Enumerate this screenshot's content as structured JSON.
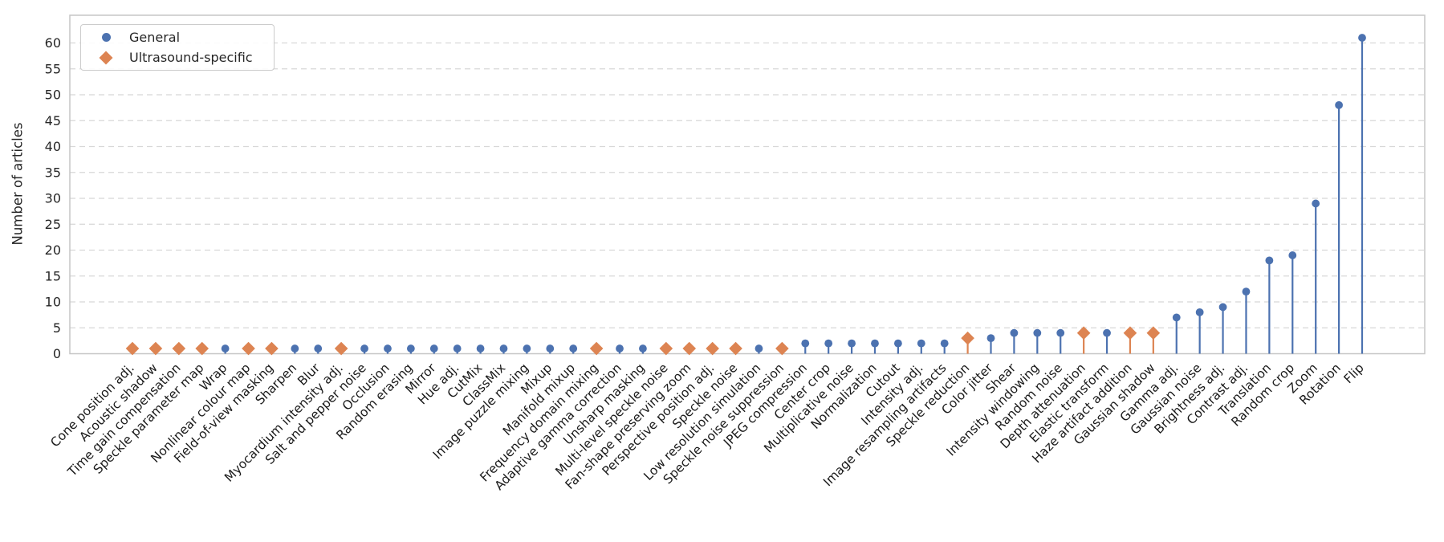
{
  "figure": {
    "ylabel": "Number of articles",
    "legend": {
      "items": [
        {
          "label": "General",
          "marker": "circle-icon",
          "color": "#4C72B0"
        },
        {
          "label": "Ultrasound-specific",
          "marker": "diamond-icon",
          "color": "#DD8452"
        }
      ]
    }
  },
  "chart_data": {
    "type": "stem",
    "title": "",
    "xlabel": "",
    "ylabel": "Number of articles",
    "ylim": [
      0,
      65.5
    ],
    "yticks": [
      0,
      5,
      10,
      15,
      20,
      25,
      30,
      35,
      40,
      45,
      50,
      55,
      60
    ],
    "grid": "horizontal-dashed",
    "legend_position": "upper left",
    "group_colors": {
      "General": "#4C72B0",
      "Ultrasound-specific": "#DD8452"
    },
    "group_markers": {
      "General": "circle",
      "Ultrasound-specific": "diamond"
    },
    "categories": [
      "Cone position adj.",
      "Acoustic shadow",
      "Time gain compensation",
      "Speckle parameter map",
      "Wrap",
      "Nonlinear colour map",
      "Field-of-view masking",
      "Sharpen",
      "Blur",
      "Myocardium intensity adj.",
      "Salt and pepper noise",
      "Occlusion",
      "Random erasing",
      "Mirror",
      "Hue adj.",
      "CutMix",
      "ClassMix",
      "Image puzzle mixing",
      "Mixup",
      "Manifold mixup",
      "Frequency domain mixing",
      "Adaptive gamma correction",
      "Unsharp masking",
      "Multi-level speckle noise",
      "Fan-shape preserving zoom",
      "Perspective position adj.",
      "Speckle noise",
      "Low resolution simulation",
      "Speckle noise suppression",
      "JPEG compression",
      "Center crop",
      "Multiplicative noise",
      "Normalization",
      "Cutout",
      "Intensity adj.",
      "Image resampling artifacts",
      "Speckle reduction",
      "Color jitter",
      "Shear",
      "Intensity windowing",
      "Random noise",
      "Depth attenuation",
      "Elastic transform",
      "Haze artifact addition",
      "Gaussian shadow",
      "Gamma adj.",
      "Gaussian noise",
      "Brightness adj.",
      "Contrast adj.",
      "Translation",
      "Random crop",
      "Zoom",
      "Rotation",
      "Flip"
    ],
    "values": [
      1,
      1,
      1,
      1,
      1,
      1,
      1,
      1,
      1,
      1,
      1,
      1,
      1,
      1,
      1,
      1,
      1,
      1,
      1,
      1,
      1,
      1,
      1,
      1,
      1,
      1,
      1,
      1,
      1,
      2,
      2,
      2,
      2,
      2,
      2,
      2,
      3,
      3,
      4,
      4,
      4,
      4,
      4,
      4,
      4,
      7,
      8,
      9,
      12,
      18,
      19,
      29,
      48,
      61
    ],
    "groups": [
      "Ultrasound-specific",
      "Ultrasound-specific",
      "Ultrasound-specific",
      "Ultrasound-specific",
      "General",
      "Ultrasound-specific",
      "Ultrasound-specific",
      "General",
      "General",
      "Ultrasound-specific",
      "General",
      "General",
      "General",
      "General",
      "General",
      "General",
      "General",
      "General",
      "General",
      "General",
      "Ultrasound-specific",
      "General",
      "General",
      "Ultrasound-specific",
      "Ultrasound-specific",
      "Ultrasound-specific",
      "Ultrasound-specific",
      "General",
      "Ultrasound-specific",
      "General",
      "General",
      "General",
      "General",
      "General",
      "General",
      "General",
      "Ultrasound-specific",
      "General",
      "General",
      "General",
      "General",
      "Ultrasound-specific",
      "General",
      "Ultrasound-specific",
      "Ultrasound-specific",
      "General",
      "General",
      "General",
      "General",
      "General",
      "General",
      "General",
      "General",
      "General"
    ]
  }
}
